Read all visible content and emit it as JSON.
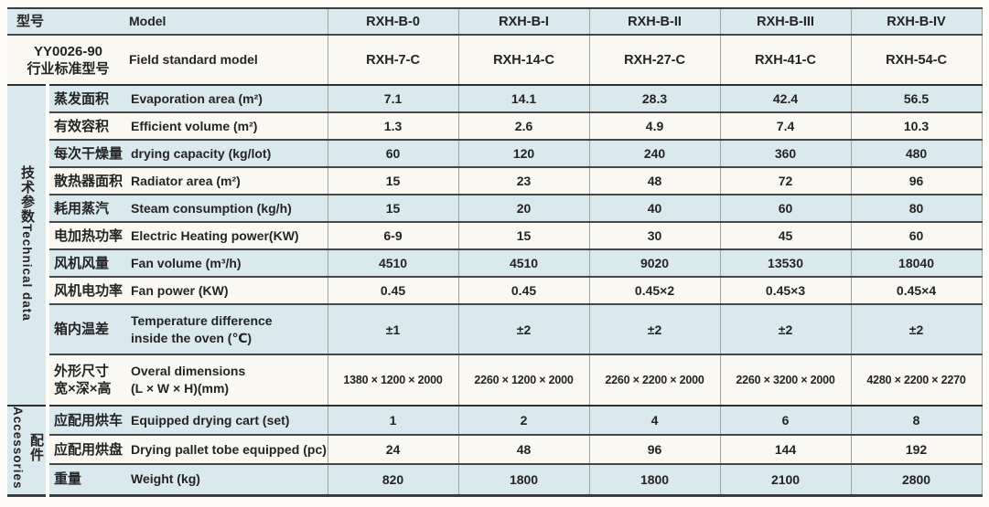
{
  "colors": {
    "row_blue": "#d9e9ee",
    "row_cream": "#faf8f2",
    "line_dark": "#3c3c3c",
    "line_light": "#9aa2a4"
  },
  "table": {
    "header": {
      "model_zh": "型号",
      "model_en": "Model",
      "models": [
        "RXH-B-0",
        "RXH-B-I",
        "RXH-B-II",
        "RXH-B-III",
        "RXH-B-IV"
      ],
      "standard_zh": "YY0026-90\n行业标准型号",
      "standard_en": "Field standard model",
      "standard_models": [
        "RXH-7-C",
        "RXH-14-C",
        "RXH-27-C",
        "RXH-41-C",
        "RXH-54-C"
      ]
    },
    "groups": [
      {
        "zh": "技术参数",
        "en": "Technical data"
      },
      {
        "zh": "配件",
        "en": "Accessories"
      }
    ],
    "rows": [
      {
        "zh": "蒸发面积",
        "en": "Evaporation area (m²)",
        "values": [
          "7.1",
          "14.1",
          "28.3",
          "42.4",
          "56.5"
        ]
      },
      {
        "zh": "有效容积",
        "en": "Efficient volume (m²)",
        "values": [
          "1.3",
          "2.6",
          "4.9",
          "7.4",
          "10.3"
        ]
      },
      {
        "zh": "每次干燥量",
        "en": "drying capacity (kg/lot)",
        "values": [
          "60",
          "120",
          "240",
          "360",
          "480"
        ]
      },
      {
        "zh": "散热器面积",
        "en": "Radiator area (m²)",
        "values": [
          "15",
          "23",
          "48",
          "72",
          "96"
        ]
      },
      {
        "zh": "耗用蒸汽",
        "en": "Steam consumption (kg/h)",
        "values": [
          "15",
          "20",
          "40",
          "60",
          "80"
        ]
      },
      {
        "zh": "电加热功率",
        "en": "Electric Heating power(KW)",
        "values": [
          "6-9",
          "15",
          "30",
          "45",
          "60"
        ]
      },
      {
        "zh": "风机风量",
        "en": "Fan volume (m³/h)",
        "values": [
          "4510",
          "4510",
          "9020",
          "13530",
          "18040"
        ]
      },
      {
        "zh": "风机电功率",
        "en": "Fan power (KW)",
        "values": [
          "0.45",
          "0.45",
          "0.45×2",
          "0.45×3",
          "0.45×4"
        ]
      },
      {
        "zh": "箱内温差",
        "en": "Temperature difference\ninside the oven (℃)",
        "values": [
          "±1",
          "±2",
          "±2",
          "±2",
          "±2"
        ]
      },
      {
        "zh": "外形尺寸\n宽×深×高",
        "en": "Overal dimensions\n(L × W × H)(mm)",
        "values": [
          "1380 × 1200 × 2000",
          "2260 × 1200 × 2000",
          "2260 × 2200 × 2000",
          "2260 × 3200 × 2000",
          "4280 × 2200 × 2270"
        ]
      },
      {
        "zh": "应配用烘车",
        "en": "Equipped drying cart (set)",
        "values": [
          "1",
          "2",
          "4",
          "6",
          "8"
        ]
      },
      {
        "zh": "应配用烘盘",
        "en": "Drying pallet tobe equipped (pc)",
        "values": [
          "24",
          "48",
          "96",
          "144",
          "192"
        ]
      },
      {
        "zh": "重量",
        "en": "Weight (kg)",
        "values": [
          "820",
          "1800",
          "1800",
          "2100",
          "2800"
        ]
      }
    ]
  }
}
